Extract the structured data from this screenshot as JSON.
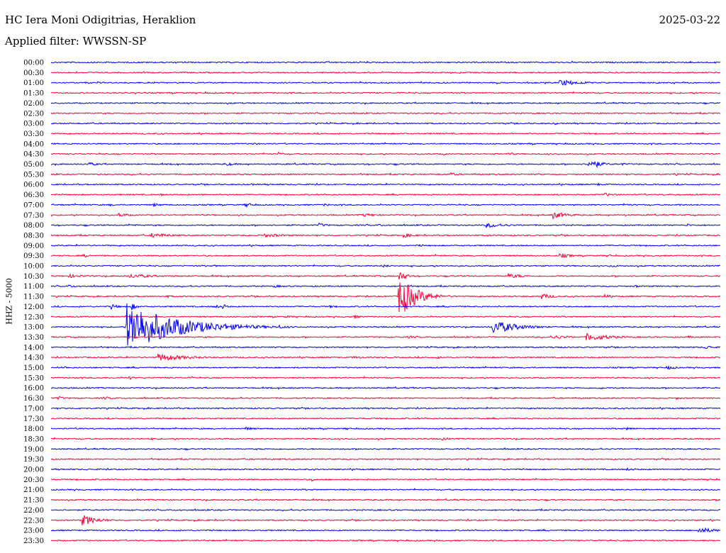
{
  "header": {
    "station": "HC Iera Moni Odigitrias, Heraklion",
    "date": "2025-03-22",
    "filter": "Applied filter: WWSSN-SP",
    "channel_label": "HHZ - 5000"
  },
  "colors": {
    "hour_trace": "#0000ff",
    "half_hour_trace": "#ff0033",
    "text": "#000000",
    "background": "#ffffff"
  },
  "chart_data": {
    "type": "line",
    "title": "HC Iera Moni Odigitrias, Heraklion",
    "ylabel": "HHZ - 5000",
    "x_unit": "minutes",
    "xlim": [
      0,
      30
    ],
    "rows": [
      {
        "label": "00:00",
        "events": [
          {
            "t": 17.3,
            "a": 0.6,
            "d": 0.3
          }
        ]
      },
      {
        "label": "00:30",
        "events": []
      },
      {
        "label": "01:00",
        "events": [
          {
            "t": 22.8,
            "a": 2.2,
            "d": 1.5
          }
        ]
      },
      {
        "label": "01:30",
        "events": []
      },
      {
        "label": "02:00",
        "events": []
      },
      {
        "label": "02:30",
        "events": []
      },
      {
        "label": "03:00",
        "events": [
          {
            "t": 22.6,
            "a": 1.0,
            "d": 0.4
          }
        ]
      },
      {
        "label": "03:30",
        "events": [
          {
            "t": 21.7,
            "a": 0.8,
            "d": 0.2
          }
        ]
      },
      {
        "label": "04:00",
        "events": [
          {
            "t": 9.0,
            "a": 0.8,
            "d": 0.7
          }
        ]
      },
      {
        "label": "04:30",
        "events": [
          {
            "t": 10.2,
            "a": 1.6,
            "d": 0.3
          },
          {
            "t": 17.6,
            "a": 0.8,
            "d": 0.5
          },
          {
            "t": 20.5,
            "a": 1.0,
            "d": 0.6
          }
        ]
      },
      {
        "label": "05:00",
        "events": [
          {
            "t": 1.7,
            "a": 1.2,
            "d": 0.8
          },
          {
            "t": 7.8,
            "a": 1.2,
            "d": 0.9
          },
          {
            "t": 24.1,
            "a": 3.8,
            "d": 0.8
          },
          {
            "t": 25.6,
            "a": 1.1,
            "d": 0.3
          }
        ]
      },
      {
        "label": "05:30",
        "events": [
          {
            "t": 17.9,
            "a": 1.1,
            "d": 0.8
          },
          {
            "t": 27.9,
            "a": 0.8,
            "d": 0.6
          }
        ]
      },
      {
        "label": "06:00",
        "events": [
          {
            "t": 8.8,
            "a": 0.9,
            "d": 0.7
          },
          {
            "t": 24.5,
            "a": 1.0,
            "d": 0.3
          }
        ]
      },
      {
        "label": "06:30",
        "events": [
          {
            "t": 4.9,
            "a": 0.8,
            "d": 0.5
          },
          {
            "t": 6.8,
            "a": 0.8,
            "d": 0.4
          },
          {
            "t": 24.8,
            "a": 1.2,
            "d": 0.9
          },
          {
            "t": 27.5,
            "a": 0.9,
            "d": 0.4
          }
        ]
      },
      {
        "label": "07:00",
        "events": [
          {
            "t": 2.6,
            "a": 0.9,
            "d": 0.6
          },
          {
            "t": 4.6,
            "a": 1.1,
            "d": 0.8
          },
          {
            "t": 8.7,
            "a": 1.7,
            "d": 0.6
          },
          {
            "t": 12.2,
            "a": 0.9,
            "d": 0.8
          },
          {
            "t": 25.8,
            "a": 0.8,
            "d": 0.5
          },
          {
            "t": 28.1,
            "a": 0.8,
            "d": 0.5
          }
        ]
      },
      {
        "label": "07:30",
        "events": [
          {
            "t": 3.0,
            "a": 1.4,
            "d": 0.9
          },
          {
            "t": 14.0,
            "a": 1.2,
            "d": 1.1
          },
          {
            "t": 22.5,
            "a": 2.3,
            "d": 1.2
          },
          {
            "t": 25.7,
            "a": 0.8,
            "d": 0.5
          }
        ]
      },
      {
        "label": "08:00",
        "events": [
          {
            "t": 3.5,
            "a": 0.9,
            "d": 0.8
          },
          {
            "t": 12.0,
            "a": 1.3,
            "d": 0.8
          },
          {
            "t": 14.7,
            "a": 0.9,
            "d": 0.4
          },
          {
            "t": 19.5,
            "a": 1.8,
            "d": 1.4
          },
          {
            "t": 28.5,
            "a": 1.1,
            "d": 0.4
          }
        ]
      },
      {
        "label": "08:30",
        "events": [
          {
            "t": 4.5,
            "a": 1.6,
            "d": 1.6
          },
          {
            "t": 9.5,
            "a": 1.3,
            "d": 1.8
          },
          {
            "t": 15.8,
            "a": 1.5,
            "d": 0.9
          },
          {
            "t": 19.5,
            "a": 0.8,
            "d": 0.6
          }
        ]
      },
      {
        "label": "09:00",
        "events": [
          {
            "t": 16.5,
            "a": 0.8,
            "d": 0.6
          }
        ]
      },
      {
        "label": "09:30",
        "events": [
          {
            "t": 1.5,
            "a": 1.0,
            "d": 0.8
          },
          {
            "t": 22.8,
            "a": 1.6,
            "d": 1.0
          },
          {
            "t": 25.0,
            "a": 0.8,
            "d": 0.5
          }
        ]
      },
      {
        "label": "10:00",
        "events": [
          {
            "t": 7.3,
            "a": 0.8,
            "d": 0.6
          },
          {
            "t": 14.9,
            "a": 1.2,
            "d": 0.4
          },
          {
            "t": 25.0,
            "a": 0.8,
            "d": 1.6
          }
        ]
      },
      {
        "label": "10:30",
        "events": [
          {
            "t": 0.8,
            "a": 1.2,
            "d": 1.2
          },
          {
            "t": 3.5,
            "a": 1.5,
            "d": 2.0
          },
          {
            "t": 20.5,
            "a": 1.5,
            "d": 1.4
          },
          {
            "t": 15.6,
            "a": 4.0,
            "d": 0.5
          }
        ]
      },
      {
        "label": "11:00",
        "events": [
          {
            "t": 0.8,
            "a": 1.0,
            "d": 0.7
          },
          {
            "t": 10.0,
            "a": 0.9,
            "d": 0.9
          },
          {
            "t": 26.2,
            "a": 0.8,
            "d": 0.5
          }
        ]
      },
      {
        "label": "11:30",
        "events": [
          {
            "t": 15.6,
            "a": 14.0,
            "d": 1.2
          },
          {
            "t": 5.2,
            "a": 0.9,
            "d": 0.6
          },
          {
            "t": 22.0,
            "a": 2.0,
            "d": 0.8
          },
          {
            "t": 24.8,
            "a": 1.7,
            "d": 0.6
          }
        ]
      },
      {
        "label": "12:00",
        "events": [
          {
            "t": 2.7,
            "a": 2.0,
            "d": 0.5
          },
          {
            "t": 3.6,
            "a": 2.5,
            "d": 0.4
          },
          {
            "t": 7.3,
            "a": 1.1,
            "d": 0.9
          },
          {
            "t": 7.7,
            "a": 1.8,
            "d": 0.4
          },
          {
            "t": 12.5,
            "a": 0.9,
            "d": 0.6
          }
        ]
      },
      {
        "label": "12:30",
        "events": [
          {
            "t": 10.5,
            "a": 0.9,
            "d": 0.7
          },
          {
            "t": 13.5,
            "a": 1.2,
            "d": 0.7
          }
        ]
      },
      {
        "label": "13:00",
        "events": [
          {
            "t": 3.4,
            "a": 16.0,
            "d": 3.5
          },
          {
            "t": 10.2,
            "a": 1.3,
            "d": 0.6
          },
          {
            "t": 19.8,
            "a": 4.5,
            "d": 1.8
          }
        ]
      },
      {
        "label": "13:30",
        "events": [
          {
            "t": 16.0,
            "a": 0.9,
            "d": 1.0
          },
          {
            "t": 24.0,
            "a": 2.6,
            "d": 1.8
          },
          {
            "t": 22.5,
            "a": 1.3,
            "d": 1.5
          },
          {
            "t": 28.5,
            "a": 0.9,
            "d": 0.8
          }
        ]
      },
      {
        "label": "14:00",
        "events": [
          {
            "t": 29.3,
            "a": 1.5,
            "d": 0.7
          },
          {
            "t": 22.5,
            "a": 0.8,
            "d": 1.0
          }
        ]
      },
      {
        "label": "14:30",
        "events": [
          {
            "t": 4.8,
            "a": 2.4,
            "d": 2.3
          },
          {
            "t": 13.5,
            "a": 0.9,
            "d": 1.2
          },
          {
            "t": 17.3,
            "a": 1.1,
            "d": 0.3
          }
        ]
      },
      {
        "label": "15:00",
        "events": [
          {
            "t": 0.5,
            "a": 0.9,
            "d": 0.8
          },
          {
            "t": 27.6,
            "a": 1.3,
            "d": 0.8
          }
        ]
      },
      {
        "label": "15:30",
        "events": [
          {
            "t": 3.5,
            "a": 1.2,
            "d": 0.4
          },
          {
            "t": 6.3,
            "a": 0.9,
            "d": 0.3
          }
        ]
      },
      {
        "label": "16:00",
        "events": [
          {
            "t": 24.6,
            "a": 1.0,
            "d": 0.4
          }
        ]
      },
      {
        "label": "16:30",
        "events": [
          {
            "t": 0.3,
            "a": 1.3,
            "d": 0.6
          },
          {
            "t": 2.3,
            "a": 1.0,
            "d": 1.2
          },
          {
            "t": 28.0,
            "a": 0.9,
            "d": 0.6
          }
        ]
      },
      {
        "label": "17:00",
        "events": [
          {
            "t": 1.3,
            "a": 0.8,
            "d": 0.5
          }
        ]
      },
      {
        "label": "17:30",
        "events": []
      },
      {
        "label": "18:00",
        "events": [
          {
            "t": 1.3,
            "a": 0.8,
            "d": 0.4
          },
          {
            "t": 8.7,
            "a": 1.1,
            "d": 0.8
          },
          {
            "t": 13.2,
            "a": 0.9,
            "d": 0.5
          },
          {
            "t": 25.8,
            "a": 1.0,
            "d": 0.8
          }
        ]
      },
      {
        "label": "18:30",
        "events": [
          {
            "t": 17.5,
            "a": 1.1,
            "d": 0.6
          },
          {
            "t": 4.5,
            "a": 0.8,
            "d": 1.0
          }
        ]
      },
      {
        "label": "19:00",
        "events": [
          {
            "t": 14.7,
            "a": 0.9,
            "d": 0.3
          }
        ]
      },
      {
        "label": "19:30",
        "events": []
      },
      {
        "label": "20:00",
        "events": [
          {
            "t": 25.8,
            "a": 0.9,
            "d": 1.0
          },
          {
            "t": 29.3,
            "a": 0.8,
            "d": 0.4
          }
        ]
      },
      {
        "label": "20:30",
        "events": [
          {
            "t": 11.7,
            "a": 1.4,
            "d": 0.25
          }
        ]
      },
      {
        "label": "21:00",
        "events": []
      },
      {
        "label": "21:30",
        "events": []
      },
      {
        "label": "22:00",
        "events": []
      },
      {
        "label": "22:30",
        "events": [
          {
            "t": 1.4,
            "a": 3.6,
            "d": 1.1
          }
        ]
      },
      {
        "label": "23:00",
        "events": [
          {
            "t": 29.0,
            "a": 2.2,
            "d": 1.2
          }
        ]
      },
      {
        "label": "23:30",
        "events": []
      }
    ]
  }
}
